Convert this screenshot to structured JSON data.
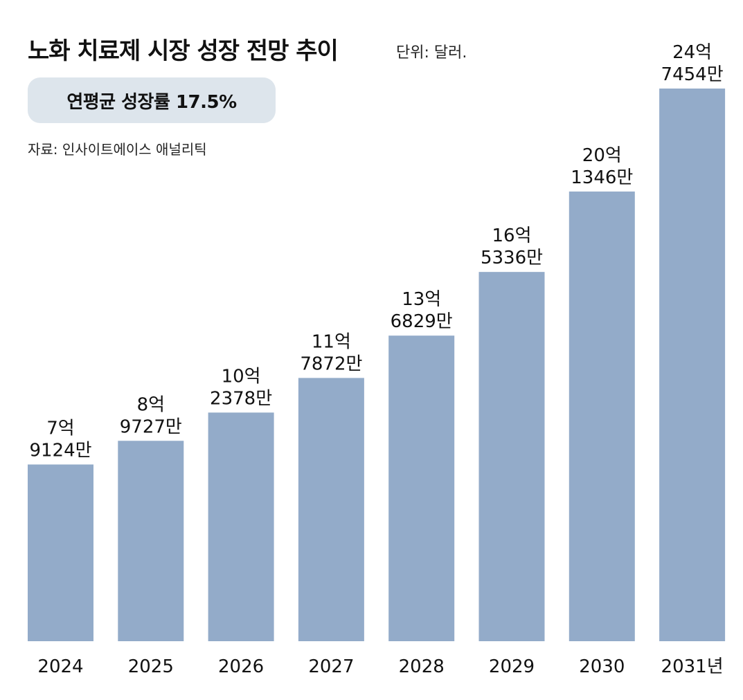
{
  "title": "노화 치료제 시장 성장 전망 추이",
  "unit_label": "단위: 달러.",
  "cagr_label": "연평균 성장률 17.5%",
  "source_label": "자료: 인사이트에이스 애널리틱",
  "colors": {
    "bar": "#93abc9",
    "cagr_box": "#dde5ec",
    "text": "#111111"
  },
  "chart_data": {
    "type": "bar",
    "title": "노화 치료제 시장 성장 전망 추이",
    "unit": "달러",
    "categories": [
      "2024",
      "2025",
      "2026",
      "2027",
      "2028",
      "2029",
      "2030",
      "2031년"
    ],
    "values": [
      791240000,
      897270000,
      1023780000,
      1178720000,
      1368290000,
      1653360000,
      2013460000,
      2474540000
    ],
    "value_labels": [
      [
        "7억",
        "9124만"
      ],
      [
        "8억",
        "9727만"
      ],
      [
        "10억",
        "2378만"
      ],
      [
        "11억",
        "7872만"
      ],
      [
        "13억",
        "6829만"
      ],
      [
        "16억",
        "5336만"
      ],
      [
        "20억",
        "1346만"
      ],
      [
        "24억",
        "7454만"
      ]
    ],
    "ylim": [
      0,
      2474540000
    ],
    "xlabel": "",
    "ylabel": "",
    "grid": false
  }
}
